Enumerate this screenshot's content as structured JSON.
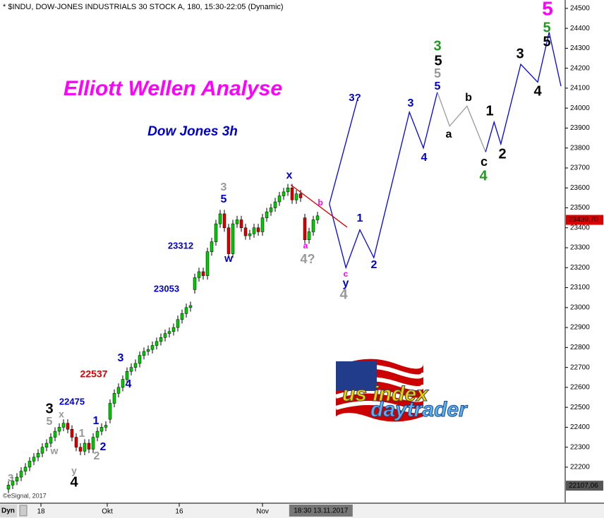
{
  "chart_data": {
    "type": "candlestick",
    "header": "* $INDU, DOW-JONES INDUSTRIALS 30 STOCK A, 180, 15:30-22:05 (Dynamic)",
    "title": "Elliott Wellen Analyse",
    "subtitle": "Dow Jones 3h",
    "copyright": "©eSignal, 2017",
    "mode_label": "Dyn",
    "cursor": {
      "value": 73.8,
      "label": "18:30 13.11.2017"
    },
    "xlim": [
      -2,
      131.33
    ],
    "ylim": [
      22030,
      24542
    ],
    "xticks": [
      {
        "value": 7.67,
        "label": "18"
      },
      {
        "value": 23.33,
        "label": "Okt"
      },
      {
        "value": 40.33,
        "label": "16"
      },
      {
        "value": 60,
        "label": "Nov"
      }
    ],
    "yticks": [
      22200,
      22300,
      22400,
      22500,
      22600,
      22700,
      22800,
      22900,
      23000,
      23100,
      23200,
      23300,
      23400,
      23500,
      23600,
      23700,
      23800,
      23900,
      24000,
      24100,
      24200,
      24300,
      24400,
      24500
    ],
    "price_markers": [
      {
        "value": 23439.7,
        "label": "23439,70",
        "color": "#dd0000"
      },
      {
        "value": 22107.06,
        "label": "22107,06",
        "color": "#555555"
      }
    ],
    "up_color": "#00cc00",
    "down_color": "#dd0000",
    "open": [
      22090,
      22110,
      22130,
      22150,
      22180,
      22200,
      22230,
      22250,
      22270,
      22300,
      22320,
      22350,
      22380,
      22400,
      22420,
      22390,
      22350,
      22300,
      22280,
      22320,
      22290,
      22350,
      22380,
      22400,
      22440,
      22520,
      22570,
      22600,
      22640,
      22680,
      22700,
      22720,
      22760,
      22780,
      22790,
      22810,
      22830,
      22850,
      22870,
      22880,
      22900,
      22940,
      22970,
      23000,
      23090,
      23150,
      23180,
      23160,
      23280,
      23330,
      23420,
      23470,
      23400,
      23270,
      23420,
      23440,
      23400,
      23360,
      23370,
      23400,
      23380,
      23450,
      23480,
      23500,
      23530,
      23560,
      23580,
      23600,
      23540,
      23570,
      23450,
      23340,
      23380,
      23440
    ],
    "high": [
      22130,
      22150,
      22170,
      22200,
      22220,
      22250,
      22270,
      22290,
      22320,
      22340,
      22370,
      22400,
      22420,
      22440,
      22440,
      22410,
      22370,
      22320,
      22340,
      22340,
      22370,
      22400,
      22420,
      22430,
      22540,
      22590,
      22620,
      22660,
      22700,
      22720,
      22740,
      22780,
      22800,
      22810,
      22830,
      22850,
      22870,
      22890,
      22900,
      22920,
      22960,
      22990,
      23020,
      23030,
      23170,
      23200,
      23200,
      23300,
      23350,
      23440,
      23490,
      23490,
      23420,
      23440,
      23460,
      23460,
      23420,
      23390,
      23420,
      23420,
      23470,
      23500,
      23520,
      23550,
      23580,
      23600,
      23620,
      23620,
      23590,
      23590,
      23470,
      23400,
      23460,
      23480
    ],
    "low": [
      22070,
      22090,
      22110,
      22130,
      22160,
      22180,
      22210,
      22230,
      22250,
      22280,
      22300,
      22330,
      22360,
      22380,
      22370,
      22330,
      22280,
      22260,
      22260,
      22270,
      22270,
      22330,
      22360,
      22380,
      22420,
      22500,
      22550,
      22580,
      22620,
      22660,
      22680,
      22700,
      22740,
      22760,
      22770,
      22790,
      22810,
      22830,
      22850,
      22860,
      22880,
      22920,
      22950,
      22980,
      23070,
      23130,
      23140,
      23140,
      23260,
      23310,
      23400,
      23380,
      23250,
      23250,
      23400,
      23380,
      23340,
      23340,
      23350,
      23360,
      23360,
      23430,
      23460,
      23480,
      23510,
      23540,
      23560,
      23520,
      23520,
      23530,
      23320,
      23320,
      23360,
      23420
    ],
    "close": [
      22110,
      22130,
      22150,
      22180,
      22200,
      22230,
      22250,
      22270,
      22300,
      22320,
      22350,
      22380,
      22400,
      22420,
      22390,
      22350,
      22300,
      22280,
      22320,
      22290,
      22350,
      22380,
      22400,
      22410,
      22520,
      22570,
      22600,
      22640,
      22680,
      22700,
      22720,
      22760,
      22780,
      22790,
      22810,
      22830,
      22850,
      22870,
      22880,
      22900,
      22940,
      22970,
      23000,
      23010,
      23150,
      23180,
      23160,
      23280,
      23330,
      23420,
      23470,
      23400,
      23270,
      23420,
      23440,
      23400,
      23360,
      23370,
      23400,
      23380,
      23450,
      23480,
      23500,
      23530,
      23560,
      23580,
      23600,
      23540,
      23570,
      23550,
      23340,
      23380,
      23440,
      23460
    ],
    "series": [
      {
        "color": "#0000ff",
        "x": [
          75.8,
          82.5
        ],
        "values": [
          23520,
          24050
        ]
      },
      {
        "color": "#0000ff",
        "x": [
          75.8,
          79.7,
          83,
          86.3,
          94.7,
          98,
          101.3
        ],
        "values": [
          23520,
          23200,
          23390,
          23250,
          23980,
          23800,
          24080
        ]
      },
      {
        "color": "#999999",
        "x": [
          101.3,
          104.2,
          108.3,
          112.7
        ],
        "values": [
          24080,
          23910,
          24010,
          23780
        ]
      },
      {
        "color": "#0000ff",
        "x": [
          112.7,
          114.7,
          116.3,
          121,
          125,
          127.7,
          130.5
        ],
        "values": [
          23780,
          23930,
          23820,
          24220,
          24130,
          24380,
          24110
        ]
      },
      {
        "color": "#dd0000",
        "x": [
          66.7,
          80
        ],
        "values": [
          23615,
          23403
        ]
      }
    ],
    "annotations": [
      {
        "text": "3",
        "color": "#999999"
      },
      {
        "text": "3",
        "color": "#000000"
      },
      {
        "text": "x",
        "color": "#999999"
      },
      {
        "text": "5",
        "color": "#999999"
      },
      {
        "text": "22475",
        "color": "#0000cc"
      },
      {
        "text": "w",
        "color": "#999999"
      },
      {
        "text": "1",
        "color": "#999999"
      },
      {
        "text": "1",
        "color": "#0000cc"
      },
      {
        "text": "2",
        "color": "#0000cc"
      },
      {
        "text": "2",
        "color": "#999999"
      },
      {
        "text": "y",
        "color": "#999999"
      },
      {
        "text": "4",
        "color": "#000000"
      },
      {
        "text": "22537",
        "color": "#dd0000"
      },
      {
        "text": "3",
        "color": "#0000cc"
      },
      {
        "text": "4",
        "color": "#0000cc"
      },
      {
        "text": "23053",
        "color": "#0000cc"
      },
      {
        "text": "23312",
        "color": "#0000cc"
      },
      {
        "text": "3",
        "color": "#999999"
      },
      {
        "text": "5",
        "color": "#0000cc"
      },
      {
        "text": "w",
        "color": "#0000cc"
      },
      {
        "text": "x",
        "color": "#0000cc"
      },
      {
        "text": "b",
        "color": "#ff00ff"
      },
      {
        "text": "a",
        "color": "#ff00ff"
      },
      {
        "text": "4?",
        "color": "#999999"
      },
      {
        "text": "3?",
        "color": "#0000cc"
      },
      {
        "text": "1",
        "color": "#0000cc"
      },
      {
        "text": "c",
        "color": "#ff00ff"
      },
      {
        "text": "y",
        "color": "#0000cc"
      },
      {
        "text": "4",
        "color": "#999999"
      },
      {
        "text": "2",
        "color": "#0000cc"
      },
      {
        "text": "3",
        "color": "#0000cc"
      },
      {
        "text": "4",
        "color": "#0000cc"
      },
      {
        "text": "3",
        "color": "#229922"
      },
      {
        "text": "5",
        "color": "#000000"
      },
      {
        "text": "5",
        "color": "#999999"
      },
      {
        "text": "5",
        "color": "#0000cc"
      },
      {
        "text": "a",
        "color": "#000000"
      },
      {
        "text": "b",
        "color": "#000000"
      },
      {
        "text": "1",
        "color": "#000000"
      },
      {
        "text": "c",
        "color": "#000000"
      },
      {
        "text": "2",
        "color": "#000000"
      },
      {
        "text": "4",
        "color": "#229922"
      },
      {
        "text": "3",
        "color": "#000000"
      },
      {
        "text": "4",
        "color": "#000000"
      },
      {
        "text": "5",
        "color": "#ff00ff"
      },
      {
        "text": "5",
        "color": "#229922"
      },
      {
        "text": "5",
        "color": "#000000"
      }
    ],
    "logo": {
      "line1": "us index",
      "line2": "daytrader"
    }
  }
}
